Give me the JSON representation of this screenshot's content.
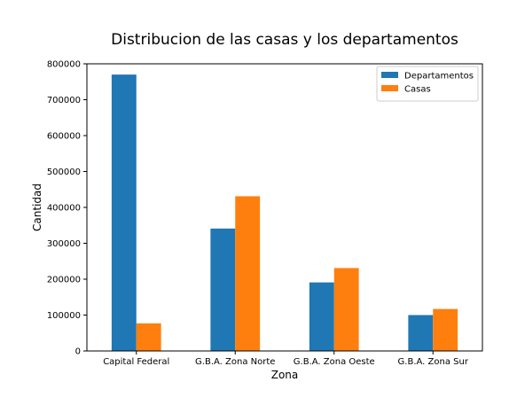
{
  "chart_data": {
    "type": "bar",
    "title": "Distribucion de las casas y los departamentos",
    "xlabel": "Zona",
    "ylabel": "Cantidad",
    "categories": [
      "Capital Federal",
      "G.B.A. Zona Norte",
      "G.B.A. Zona Oeste",
      "G.B.A. Zona Sur"
    ],
    "series": [
      {
        "name": "Departamentos",
        "color": "#1f77b4",
        "values": [
          770000,
          341000,
          191000,
          100000
        ]
      },
      {
        "name": "Casas",
        "color": "#ff7f0e",
        "values": [
          77000,
          431000,
          231000,
          117000
        ]
      }
    ],
    "ylim": [
      0,
      800000
    ],
    "yticks": [
      "0",
      "100000",
      "200000",
      "300000",
      "400000",
      "500000",
      "600000",
      "700000",
      "800000"
    ],
    "grid": false,
    "legend_position": "top-right"
  }
}
